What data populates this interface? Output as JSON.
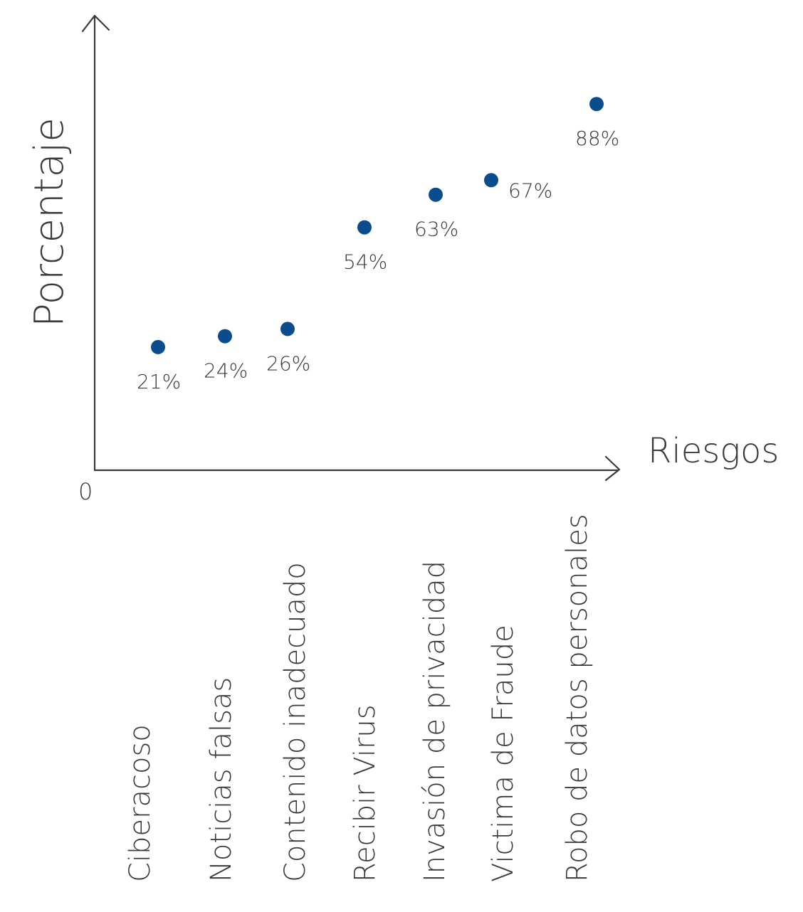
{
  "chart_data": {
    "type": "scatter",
    "title": "",
    "xlabel": "Riesgos",
    "ylabel": "Porcentaje",
    "origin_label": "0",
    "ylim": [
      0,
      100
    ],
    "grid": false,
    "point_color": "#0b4d8c",
    "axis_color": "#3a3a3a",
    "categories": [
      "Ciberacoso",
      "Noticias falsas",
      "Contenido inadecuado",
      "Recibir Virus",
      "Invasión de privacidad",
      "Victima de Fraude",
      "Robo de datos personales"
    ],
    "values": [
      21,
      24,
      26,
      54,
      63,
      67,
      88
    ],
    "data_labels": [
      "21%",
      "24%",
      "26%",
      "54%",
      "63%",
      "67%",
      "88%"
    ]
  }
}
